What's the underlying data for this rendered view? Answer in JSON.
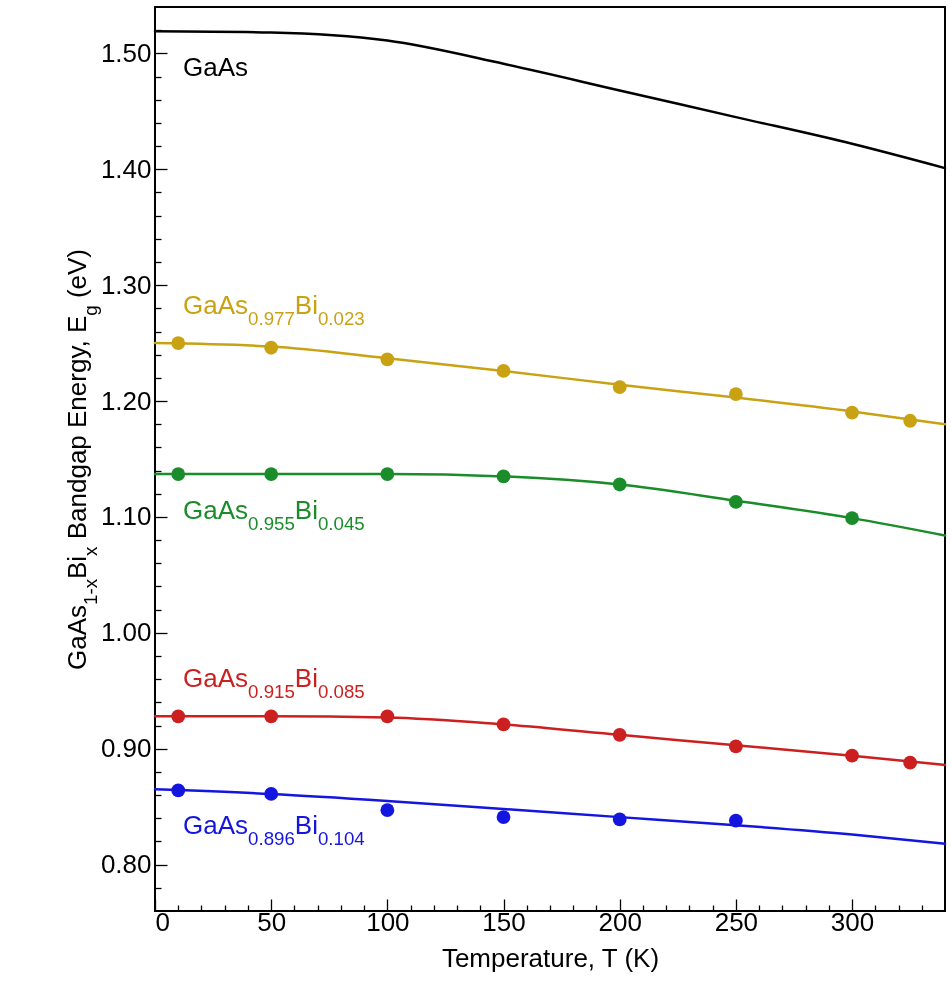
{
  "chart_data": {
    "type": "scatter",
    "xlabel": "Temperature, T (K)",
    "ylabel": "GaAs$_{1-x}$Bi$_{x}$ Bandgap Energy, E$_{g}$ (eV)",
    "xlim": [
      0,
      340
    ],
    "ylim": [
      0.76,
      1.54
    ],
    "xticks": [
      0,
      {
        "value": 10,
        "label": null
      },
      {
        "value": 20,
        "label": null
      },
      {
        "value": 30,
        "label": null
      },
      {
        "value": 40,
        "label": null
      },
      50,
      {
        "value": 60,
        "label": null
      },
      {
        "value": 70,
        "label": null
      },
      {
        "value": 80,
        "label": null
      },
      {
        "value": 90,
        "label": null
      },
      100,
      {
        "value": 110,
        "label": null
      },
      {
        "value": 120,
        "label": null
      },
      {
        "value": 130,
        "label": null
      },
      {
        "value": 140,
        "label": null
      },
      150,
      {
        "value": 160,
        "label": null
      },
      {
        "value": 170,
        "label": null
      },
      {
        "value": 180,
        "label": null
      },
      {
        "value": 190,
        "label": null
      },
      200,
      {
        "value": 210,
        "label": null
      },
      {
        "value": 220,
        "label": null
      },
      {
        "value": 230,
        "label": null
      },
      {
        "value": 240,
        "label": null
      },
      250,
      {
        "value": 260,
        "label": null
      },
      {
        "value": 270,
        "label": null
      },
      {
        "value": 280,
        "label": null
      },
      {
        "value": 290,
        "label": null
      },
      300,
      {
        "value": 310,
        "label": null
      },
      {
        "value": 320,
        "label": null
      },
      {
        "value": 330,
        "label": null
      }
    ],
    "yticks": [
      {
        "value": 0.78,
        "label": null
      },
      {
        "value": 0.8,
        "label": "0.80"
      },
      {
        "value": 0.82,
        "label": null
      },
      {
        "value": 0.84,
        "label": null
      },
      {
        "value": 0.86,
        "label": null
      },
      {
        "value": 0.88,
        "label": null
      },
      {
        "value": 0.9,
        "label": "0.90"
      },
      {
        "value": 0.92,
        "label": null
      },
      {
        "value": 0.94,
        "label": null
      },
      {
        "value": 0.96,
        "label": null
      },
      {
        "value": 0.98,
        "label": null
      },
      {
        "value": 1.0,
        "label": "1.00"
      },
      {
        "value": 1.02,
        "label": null
      },
      {
        "value": 1.04,
        "label": null
      },
      {
        "value": 1.06,
        "label": null
      },
      {
        "value": 1.08,
        "label": null
      },
      {
        "value": 1.1,
        "label": "1.10"
      },
      {
        "value": 1.12,
        "label": null
      },
      {
        "value": 1.14,
        "label": null
      },
      {
        "value": 1.16,
        "label": null
      },
      {
        "value": 1.18,
        "label": null
      },
      {
        "value": 1.2,
        "label": "1.20"
      },
      {
        "value": 1.22,
        "label": null
      },
      {
        "value": 1.24,
        "label": null
      },
      {
        "value": 1.26,
        "label": null
      },
      {
        "value": 1.28,
        "label": null
      },
      {
        "value": 1.3,
        "label": "1.30"
      },
      {
        "value": 1.32,
        "label": null
      },
      {
        "value": 1.34,
        "label": null
      },
      {
        "value": 1.36,
        "label": null
      },
      {
        "value": 1.38,
        "label": null
      },
      {
        "value": 1.4,
        "label": "1.40"
      },
      {
        "value": 1.42,
        "label": null
      },
      {
        "value": 1.44,
        "label": null
      },
      {
        "value": 1.46,
        "label": null
      },
      {
        "value": 1.48,
        "label": null
      },
      {
        "value": 1.5,
        "label": "1.50"
      },
      {
        "value": 1.52,
        "label": null
      }
    ],
    "series": [
      {
        "type": "line",
        "name": "GaAs",
        "color": "#000000",
        "x": [
          0,
          50,
          100,
          150,
          200,
          250,
          300,
          340
        ],
        "values": [
          1.519,
          1.518,
          1.511,
          1.491,
          1.468,
          1.445,
          1.422,
          1.401
        ]
      },
      {
        "type": "line",
        "name": "GaAs$_{0.977}$Bi$_{0.023}$",
        "color": "#c9a214",
        "x": [
          0,
          50,
          100,
          150,
          200,
          250,
          300,
          340
        ],
        "values": [
          1.25,
          1.247,
          1.237,
          1.226,
          1.214,
          1.203,
          1.191,
          1.18
        ]
      },
      {
        "marker": "circle",
        "color": "#c9a214",
        "x": [
          10,
          50,
          100,
          150,
          200,
          250,
          300,
          325
        ],
        "values": [
          1.25,
          1.246,
          1.236,
          1.226,
          1.212,
          1.206,
          1.19,
          1.183
        ]
      },
      {
        "type": "line",
        "name": "GaAs$_{0.955}$Bi$_{0.045}$",
        "color": "#1a8c2a",
        "x": [
          0,
          50,
          100,
          150,
          200,
          250,
          300,
          340
        ],
        "values": [
          1.137,
          1.137,
          1.137,
          1.135,
          1.128,
          1.114,
          1.099,
          1.084
        ]
      },
      {
        "marker": "circle",
        "color": "#1a8c2a",
        "x": [
          10,
          50,
          100,
          150,
          200,
          250,
          300
        ],
        "values": [
          1.137,
          1.137,
          1.137,
          1.135,
          1.128,
          1.113,
          1.099
        ]
      },
      {
        "type": "line",
        "name": "GaAs$_{0.915}$Bi$_{0.085}$",
        "color": "#cc1f1f",
        "x": [
          0,
          50,
          100,
          150,
          200,
          250,
          300,
          340
        ],
        "values": [
          0.928,
          0.928,
          0.927,
          0.921,
          0.912,
          0.903,
          0.894,
          0.886
        ]
      },
      {
        "marker": "circle",
        "color": "#cc1f1f",
        "x": [
          10,
          50,
          100,
          150,
          200,
          250,
          300,
          325
        ],
        "values": [
          0.928,
          0.928,
          0.928,
          0.921,
          0.912,
          0.902,
          0.894,
          0.888
        ]
      },
      {
        "type": "line",
        "name": "GaAs$_{0.896}$Bi$_{0.104}$",
        "color": "#1515e0",
        "x": [
          0,
          50,
          100,
          150,
          200,
          250,
          300,
          340
        ],
        "values": [
          0.865,
          0.861,
          0.855,
          0.848,
          0.841,
          0.834,
          0.826,
          0.818
        ]
      },
      {
        "marker": "circle",
        "color": "#1515e0",
        "x": [
          10,
          50,
          100,
          150,
          200,
          250
        ],
        "values": [
          0.864,
          0.861,
          0.847,
          0.841,
          0.839,
          0.838
        ]
      }
    ]
  }
}
